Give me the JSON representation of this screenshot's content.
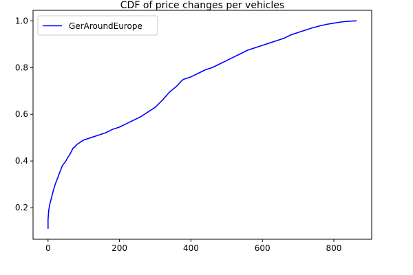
{
  "chart_data": {
    "type": "line",
    "title": "CDF of price changes per vehicles",
    "xlabel": "",
    "ylabel": "",
    "xlim": [
      -42,
      906
    ],
    "ylim": [
      0.065,
      1.045
    ],
    "xticks": [
      0,
      200,
      400,
      600,
      800
    ],
    "yticks": [
      0.2,
      0.4,
      0.6,
      0.8,
      1.0
    ],
    "grid": false,
    "legend_position": "top-left",
    "series": [
      {
        "name": "GerAroundEurope",
        "color": "#0000ff",
        "x": [
          0,
          0,
          2,
          5,
          10,
          15,
          20,
          25,
          30,
          35,
          40,
          45,
          50,
          55,
          60,
          65,
          70,
          75,
          80,
          90,
          100,
          120,
          140,
          160,
          180,
          200,
          220,
          240,
          260,
          280,
          300,
          320,
          340,
          360,
          375,
          380,
          400,
          420,
          440,
          460,
          480,
          500,
          520,
          540,
          560,
          580,
          600,
          620,
          640,
          660,
          680,
          700,
          720,
          740,
          760,
          780,
          800,
          820,
          840,
          864
        ],
        "y": [
          0.11,
          0.15,
          0.19,
          0.215,
          0.245,
          0.275,
          0.3,
          0.32,
          0.34,
          0.36,
          0.38,
          0.39,
          0.4,
          0.415,
          0.425,
          0.44,
          0.455,
          0.46,
          0.47,
          0.48,
          0.49,
          0.5,
          0.51,
          0.52,
          0.535,
          0.545,
          0.56,
          0.575,
          0.59,
          0.61,
          0.63,
          0.66,
          0.695,
          0.72,
          0.745,
          0.75,
          0.76,
          0.775,
          0.79,
          0.8,
          0.815,
          0.83,
          0.845,
          0.86,
          0.875,
          0.885,
          0.895,
          0.905,
          0.915,
          0.925,
          0.94,
          0.95,
          0.96,
          0.97,
          0.978,
          0.985,
          0.99,
          0.995,
          0.998,
          1.0
        ]
      }
    ]
  }
}
